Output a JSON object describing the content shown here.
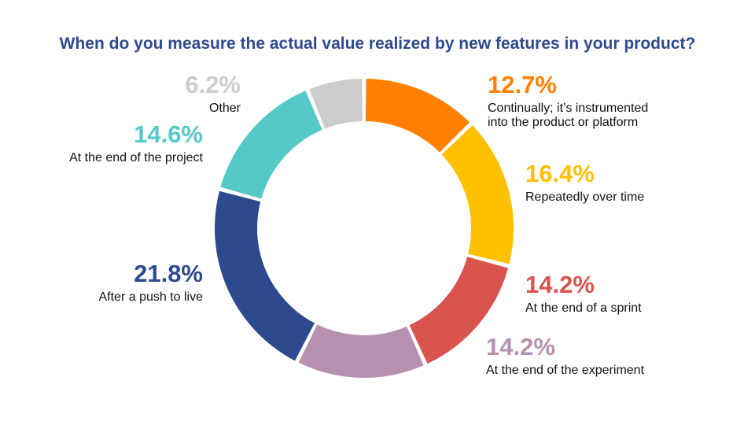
{
  "chart_data": {
    "type": "pie",
    "title": "When do you measure the actual value realized by new features in your product?",
    "slices": [
      {
        "label": "Continually; it’s instrumented\ninto the product or platform",
        "value": 12.7,
        "value_label": "12.7%",
        "color": "#ff8000"
      },
      {
        "label": "Repeatedly over time",
        "value": 16.4,
        "value_label": "16.4%",
        "color": "#ffc000"
      },
      {
        "label": "At the end of a sprint",
        "value": 14.2,
        "value_label": "14.2%",
        "color": "#d9534f"
      },
      {
        "label": "At the end of the experiment",
        "value": 14.2,
        "value_label": "14.2%",
        "color": "#b690b0"
      },
      {
        "label": "After a push to live",
        "value": 21.8,
        "value_label": "21.8%",
        "color": "#2e4a8f"
      },
      {
        "label": "At the end of the project",
        "value": 14.6,
        "value_label": "14.6%",
        "color": "#55c8c8"
      },
      {
        "label": "Other",
        "value": 6.2,
        "value_label": "6.2%",
        "color": "#cccccc"
      }
    ]
  }
}
